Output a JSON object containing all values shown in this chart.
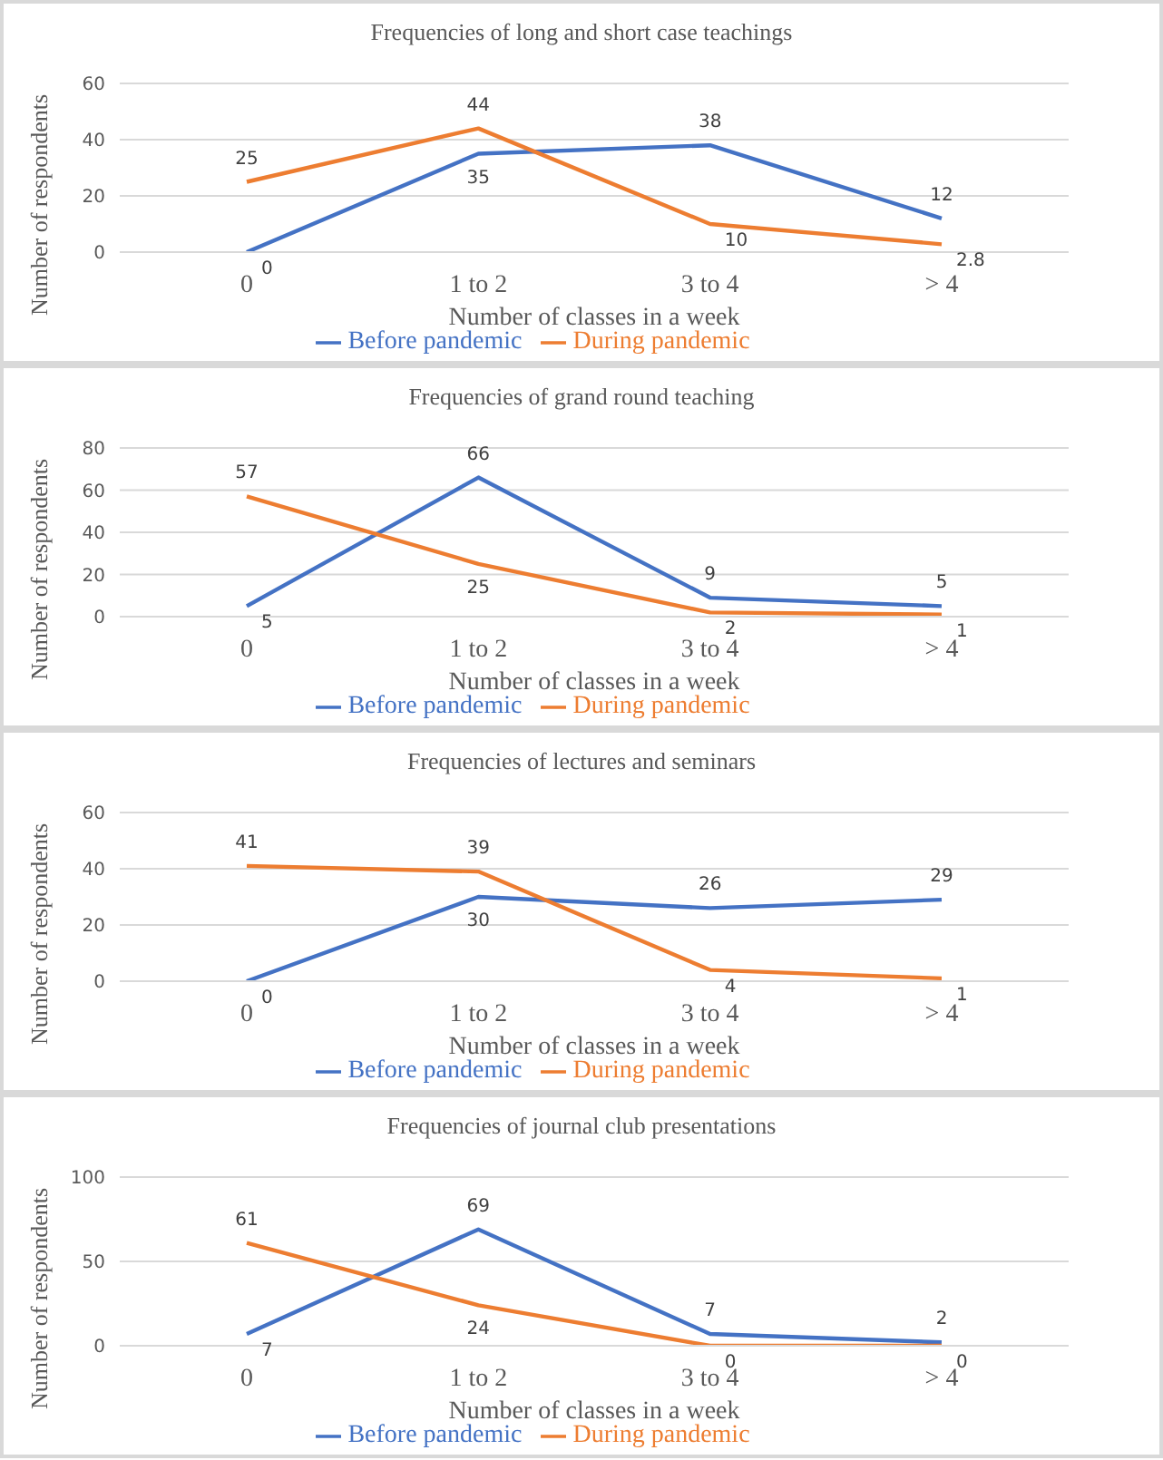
{
  "chart_data": [
    {
      "type": "line",
      "title": "Frequencies of long and short case teachings",
      "xlabel": "Number of classes in a week",
      "ylabel": "Number of respondents",
      "categories": [
        "0",
        "1 to 2",
        "3 to 4",
        "> 4"
      ],
      "ylim": [
        0,
        60
      ],
      "yticks": [
        0,
        20,
        40,
        60
      ],
      "grid": "y",
      "legend": "bottom",
      "data_labels": true,
      "series": [
        {
          "name": "Before pandemic",
          "color": "#4472c4",
          "values": [
            0,
            35,
            38,
            12
          ]
        },
        {
          "name": "During pandemic",
          "color": "#ed7d31",
          "values": [
            25,
            44,
            10,
            2.8
          ]
        }
      ]
    },
    {
      "type": "line",
      "title": "Frequencies of grand round teaching",
      "xlabel": "Number of classes in a week",
      "ylabel": "Number of respondents",
      "categories": [
        "0",
        "1 to 2",
        "3 to 4",
        "> 4"
      ],
      "ylim": [
        0,
        80
      ],
      "yticks": [
        0,
        20,
        40,
        60,
        80
      ],
      "grid": "y",
      "legend": "bottom",
      "data_labels": true,
      "series": [
        {
          "name": "Before pandemic",
          "color": "#4472c4",
          "values": [
            5,
            66,
            9,
            5
          ]
        },
        {
          "name": "During pandemic",
          "color": "#ed7d31",
          "values": [
            57,
            25,
            2,
            1
          ]
        }
      ]
    },
    {
      "type": "line",
      "title": "Frequencies of lectures and seminars",
      "xlabel": "Number of classes in a week",
      "ylabel": "Number of respondents",
      "categories": [
        "0",
        "1 to 2",
        "3 to 4",
        "> 4"
      ],
      "ylim": [
        0,
        60
      ],
      "yticks": [
        0,
        20,
        40,
        60
      ],
      "grid": "y",
      "legend": "bottom",
      "data_labels": true,
      "series": [
        {
          "name": "Before pandemic",
          "color": "#4472c4",
          "values": [
            0,
            30,
            26,
            29
          ]
        },
        {
          "name": "During pandemic",
          "color": "#ed7d31",
          "values": [
            41,
            39,
            4,
            1
          ]
        }
      ]
    },
    {
      "type": "line",
      "title": "Frequencies of journal club presentations",
      "xlabel": "Number of classes in a week",
      "ylabel": "Number of respondents",
      "categories": [
        "0",
        "1 to 2",
        "3 to 4",
        "> 4"
      ],
      "ylim": [
        0,
        100
      ],
      "yticks": [
        0,
        50,
        100
      ],
      "grid": "y",
      "legend": "bottom",
      "data_labels": true,
      "series": [
        {
          "name": "Before pandemic",
          "color": "#4472c4",
          "values": [
            7,
            69,
            7,
            2
          ]
        },
        {
          "name": "During pandemic",
          "color": "#ed7d31",
          "values": [
            61,
            24,
            0,
            0
          ]
        }
      ]
    }
  ]
}
